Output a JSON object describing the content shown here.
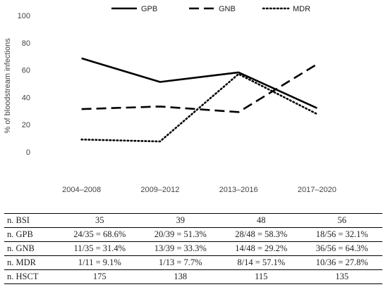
{
  "chart_data": {
    "type": "line",
    "categories": [
      "2004–2008",
      "2009–2012",
      "2013–2016",
      "2017–2020"
    ],
    "series": [
      {
        "name": "GPB",
        "style": "solid",
        "values": [
          68.6,
          51.3,
          58.3,
          32.1
        ]
      },
      {
        "name": "GNB",
        "style": "dashed",
        "values": [
          31.4,
          33.3,
          29.2,
          64.3
        ]
      },
      {
        "name": "MDR",
        "style": "dotted",
        "values": [
          9.1,
          7.7,
          57.1,
          27.8
        ]
      }
    ],
    "ylabel": "% of bloodstream infections",
    "ylim": [
      0,
      100
    ],
    "yticks": [
      "0",
      "20",
      "40",
      "60",
      "80",
      "100"
    ],
    "grid": false,
    "legend": "top",
    "line_color": "#000000"
  },
  "table": {
    "rows": [
      {
        "label": "n. BSI",
        "cells": [
          "35",
          "39",
          "48",
          "56"
        ]
      },
      {
        "label": "n. GPB",
        "cells": [
          "24/35 = 68.6%",
          "20/39 = 51.3%",
          "28/48 = 58.3%",
          "18/56 = 32.1%"
        ]
      },
      {
        "label": "n. GNB",
        "cells": [
          "11/35 = 31.4%",
          "13/39 = 33.3%",
          "14/48 = 29.2%",
          "36/56 = 64.3%"
        ]
      },
      {
        "label": "n. MDR",
        "cells": [
          "1/11 = 9.1%",
          "1/13 = 7.7%",
          "8/14 = 57.1%",
          "10/36 = 27.8%"
        ]
      },
      {
        "label": "n. HSCT",
        "cells": [
          "175",
          "138",
          "115",
          "135"
        ]
      }
    ]
  }
}
